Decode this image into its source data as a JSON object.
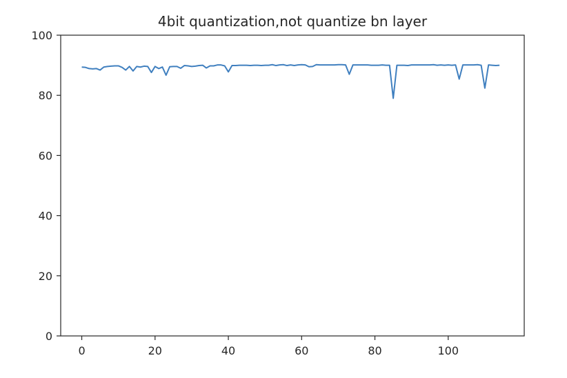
{
  "chart_data": {
    "type": "line",
    "title": "4bit quantization,not quantize bn layer",
    "xlabel": "",
    "ylabel": "",
    "xlim": [
      -5.75,
      120.75
    ],
    "ylim": [
      0,
      100
    ],
    "xticks": [
      0,
      20,
      40,
      60,
      80,
      100
    ],
    "yticks": [
      0,
      20,
      40,
      60,
      80,
      100
    ],
    "grid": false,
    "line_color": "#3f7fbf",
    "series": [
      {
        "x": [
          0,
          1,
          2,
          3,
          4,
          5,
          6,
          7,
          8,
          9,
          10,
          11,
          12,
          13,
          14,
          15,
          16,
          17,
          18,
          19,
          20,
          21,
          22,
          23,
          24,
          25,
          26,
          27,
          28,
          29,
          30,
          31,
          32,
          33,
          34,
          35,
          36,
          37,
          38,
          39,
          40,
          41,
          42,
          43,
          44,
          45,
          46,
          47,
          48,
          49,
          50,
          51,
          52,
          53,
          54,
          55,
          56,
          57,
          58,
          59,
          60,
          61,
          62,
          63,
          64,
          65,
          66,
          67,
          68,
          69,
          70,
          71,
          72,
          73,
          74,
          75,
          76,
          77,
          78,
          79,
          80,
          81,
          82,
          83,
          84,
          85,
          86,
          87,
          88,
          89,
          90,
          91,
          92,
          93,
          94,
          95,
          96,
          97,
          98,
          99,
          100,
          101,
          102,
          103,
          104,
          105,
          106,
          107,
          108,
          109,
          110,
          111,
          112,
          113,
          114
        ],
        "values": [
          89.4,
          89.3,
          88.9,
          88.8,
          88.9,
          88.4,
          89.4,
          89.6,
          89.7,
          89.8,
          89.8,
          89.3,
          88.4,
          89.6,
          88.1,
          89.6,
          89.4,
          89.7,
          89.6,
          87.6,
          89.6,
          88.9,
          89.4,
          86.7,
          89.5,
          89.6,
          89.6,
          89.0,
          89.9,
          89.8,
          89.6,
          89.7,
          89.9,
          90.0,
          89.1,
          89.8,
          89.8,
          90.1,
          90.1,
          89.8,
          87.8,
          89.9,
          89.9,
          90.0,
          90.0,
          90.0,
          89.9,
          90.0,
          90.0,
          89.9,
          90.0,
          90.0,
          90.2,
          89.9,
          90.1,
          90.2,
          89.9,
          90.1,
          89.9,
          90.1,
          90.2,
          90.1,
          89.5,
          89.6,
          90.2,
          90.1,
          90.1,
          90.1,
          90.1,
          90.1,
          90.2,
          90.2,
          90.1,
          87.0,
          90.1,
          90.1,
          90.1,
          90.1,
          90.1,
          90.0,
          90.0,
          90.0,
          90.1,
          90.0,
          90.0,
          79.0,
          90.0,
          90.0,
          90.0,
          89.9,
          90.1,
          90.1,
          90.1,
          90.1,
          90.1,
          90.1,
          90.2,
          90.0,
          90.1,
          90.0,
          90.1,
          90.0,
          90.1,
          85.4,
          90.1,
          90.1,
          90.1,
          90.1,
          90.2,
          90.0,
          82.4,
          90.1,
          90.0,
          89.9,
          90.0
        ]
      }
    ]
  }
}
